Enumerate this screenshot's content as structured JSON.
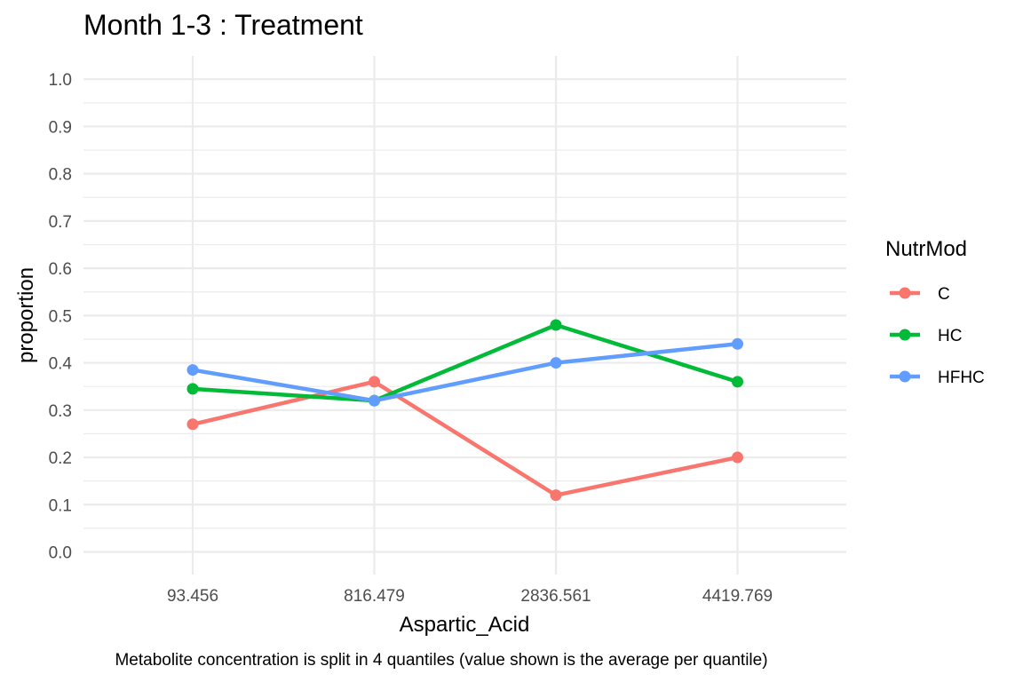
{
  "chart_data": {
    "type": "line",
    "title": "Month 1-3 : Treatment",
    "xlabel": "Aspartic_Acid",
    "ylabel": "proportion",
    "caption": "Metabolite concentration is split in 4 quantiles (value shown is the average per quantile)",
    "categories": [
      "93.456",
      "816.479",
      "2836.561",
      "4419.769"
    ],
    "ylim": [
      0.0,
      1.0
    ],
    "yticks": [
      "0.0",
      "0.1",
      "0.2",
      "0.3",
      "0.4",
      "0.5",
      "0.6",
      "0.7",
      "0.8",
      "0.9",
      "1.0"
    ],
    "grid": true,
    "legend": {
      "title": "NutrMod",
      "position": "right"
    },
    "series": [
      {
        "name": "C",
        "color": "#F8766D",
        "values": [
          0.27,
          0.36,
          0.12,
          0.2
        ]
      },
      {
        "name": "HC",
        "color": "#00BA38",
        "values": [
          0.345,
          0.32,
          0.48,
          0.36
        ]
      },
      {
        "name": "HFHC",
        "color": "#619CFF",
        "values": [
          0.385,
          0.32,
          0.4,
          0.44
        ]
      }
    ]
  }
}
